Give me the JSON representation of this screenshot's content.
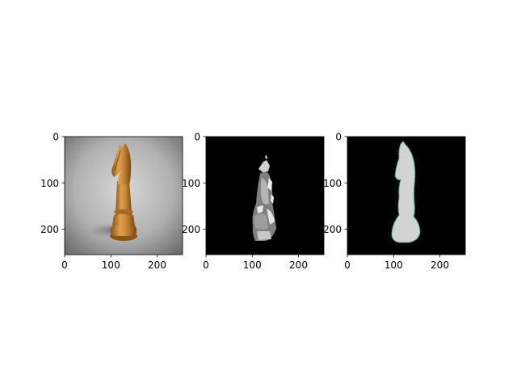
{
  "chart_data": [
    {
      "type": "image",
      "content": "wooden chess knight photo",
      "xlim": [
        0,
        255
      ],
      "ylim": [
        255,
        0
      ],
      "xticks": [
        0,
        100,
        200
      ],
      "yticks": [
        0,
        100,
        200
      ],
      "xtick_labels": [
        "0",
        "100",
        "200"
      ],
      "ytick_labels": [
        "0",
        "100",
        "200"
      ]
    },
    {
      "type": "image",
      "content": "grayscale segmentation of knight on black background",
      "xlim": [
        0,
        255
      ],
      "ylim": [
        255,
        0
      ],
      "xticks": [
        0,
        100,
        200
      ],
      "yticks": [
        0,
        100,
        200
      ],
      "xtick_labels": [
        "0",
        "100",
        "200"
      ],
      "ytick_labels": [
        "0",
        "100",
        "200"
      ]
    },
    {
      "type": "image",
      "content": "light gray knight silhouette mask with teal contour on black background",
      "xlim": [
        0,
        255
      ],
      "ylim": [
        255,
        0
      ],
      "xticks": [
        0,
        100,
        200
      ],
      "yticks": [
        0,
        100,
        200
      ],
      "xtick_labels": [
        "0",
        "100",
        "200"
      ],
      "ytick_labels": [
        "0",
        "100",
        "200"
      ]
    }
  ],
  "colors": {
    "background_photo": "#9a9a9a",
    "wood": "#c98a3c",
    "segment_bg": "#000000",
    "mask": "#d3d3d3",
    "contour": "#3a9a8a"
  }
}
